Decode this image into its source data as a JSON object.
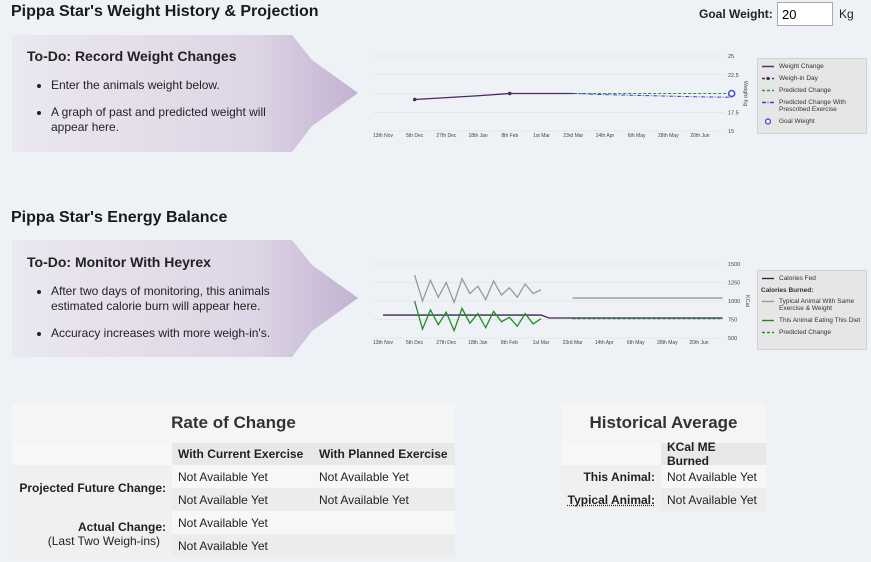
{
  "weight_section": {
    "title": "Pippa Star's Weight History & Projection",
    "goal_label": "Goal Weight:",
    "goal_value": 20,
    "goal_unit": "Kg",
    "todo": {
      "title": "To-Do: Record Weight Changes",
      "items": [
        "Enter the animals weight below.",
        "A graph of past and predicted weight will appear here."
      ]
    },
    "chart_data": {
      "type": "line",
      "y_label": "Weight Kg",
      "categories": [
        "13th Nov",
        "5th Dec",
        "27th Dec",
        "18th Jan",
        "8th Feb",
        "1st Mar",
        "23rd Mar",
        "14th Apr",
        "6th May",
        "28th May",
        "20th Jun",
        null
      ],
      "ylim": [
        15,
        25
      ],
      "yticks": [
        15,
        17.5,
        20,
        22.5,
        25
      ],
      "grid": true,
      "series": [
        {
          "name": "Weight Change",
          "color": "#4b2a5e",
          "style": "solid",
          "values": [
            null,
            19.2,
            19.45,
            19.7,
            20,
            20,
            20,
            null,
            null,
            null,
            null,
            null
          ]
        },
        {
          "name": "Weigh-in Day",
          "color": "#4b2a5e",
          "style": "marker-dashed",
          "values": [
            null,
            19.2,
            null,
            null,
            20,
            null,
            null,
            null,
            null,
            null,
            null,
            null
          ]
        },
        {
          "name": "Predicted Change",
          "color": "#2a9a2a",
          "style": "dashed",
          "values": [
            null,
            null,
            null,
            null,
            null,
            null,
            20,
            20,
            20,
            20,
            20,
            20
          ]
        },
        {
          "name": "Predicted Change With Prescribed Exercise",
          "color": "#3344cc",
          "style": "dashdot",
          "values": [
            null,
            null,
            null,
            null,
            null,
            null,
            20,
            19.85,
            19.75,
            19.65,
            19.55,
            19.5
          ]
        },
        {
          "name": "Goal Weight",
          "color": "#3f51d6",
          "style": "ring",
          "values": [
            null,
            null,
            null,
            null,
            null,
            null,
            null,
            null,
            null,
            null,
            null,
            20
          ]
        }
      ]
    }
  },
  "energy_section": {
    "title": "Pippa Star's Energy Balance",
    "todo": {
      "title": "To-Do: Monitor With Heyrex",
      "items": [
        "After two days of monitoring, this animals estimated calorie burn will appear here.",
        "Accuracy increases with more weigh-in's."
      ]
    },
    "chart_data": {
      "type": "line",
      "y_label": "KCal",
      "legend_heading": "Calories Burned:",
      "categories": [
        "13th Nov",
        null,
        null,
        null,
        "5th Dec",
        null,
        null,
        null,
        "27th Dec",
        null,
        null,
        null,
        "18th Jan",
        null,
        null,
        null,
        "8th Feb",
        null,
        null,
        null,
        "1st Mar",
        null,
        null,
        null,
        "23rd Mar",
        null,
        null,
        null,
        "14th Apr",
        null,
        null,
        null,
        "6th May",
        null,
        null,
        null,
        "28th May",
        null,
        null,
        null,
        "20th Jun",
        null,
        null,
        null
      ],
      "ylim": [
        500,
        1500
      ],
      "yticks": [
        500,
        750,
        1000,
        1250,
        1500
      ],
      "grid": true,
      "series": [
        {
          "name": "Calories Fed",
          "color": "#3d2450",
          "style": "solid",
          "values": [
            810,
            810,
            810,
            810,
            810,
            810,
            810,
            810,
            810,
            810,
            810,
            810,
            810,
            810,
            810,
            810,
            810,
            810,
            810,
            810,
            810,
            770,
            770,
            770,
            770,
            770,
            770,
            770,
            770,
            770,
            770,
            770,
            770,
            770,
            770,
            770,
            770,
            770,
            770,
            770,
            770,
            770,
            770,
            770
          ]
        },
        {
          "name": "Typical Animal With Same Exercise & Weight",
          "color": "#999999",
          "style": "solid",
          "values": [
            null,
            null,
            null,
            null,
            1350,
            1000,
            1280,
            1050,
            1250,
            980,
            1300,
            1100,
            1200,
            1020,
            1270,
            1080,
            1180,
            1050,
            1230,
            1100,
            1150,
            null,
            null,
            null,
            1040,
            1040,
            1040,
            1040,
            1040,
            1040,
            1040,
            1040,
            1040,
            1040,
            1040,
            1040,
            1040,
            1040,
            1040,
            1040,
            1040,
            1040,
            1040,
            1040
          ]
        },
        {
          "name": "This Animal Eating This Diet",
          "color": "#1f8f1f",
          "style": "solid",
          "values": [
            null,
            null,
            null,
            null,
            1000,
            620,
            880,
            680,
            850,
            600,
            900,
            700,
            830,
            640,
            860,
            720,
            780,
            660,
            830,
            690,
            760,
            null,
            null,
            null,
            null,
            null,
            null,
            null,
            null,
            null,
            null,
            null,
            null,
            null,
            null,
            null,
            null,
            null,
            null,
            null,
            null,
            null,
            null,
            null
          ]
        },
        {
          "name": "Predicted Change",
          "color": "#1f8f1f",
          "style": "dashed",
          "values": [
            null,
            null,
            null,
            null,
            null,
            null,
            null,
            null,
            null,
            null,
            null,
            null,
            null,
            null,
            null,
            null,
            null,
            null,
            null,
            null,
            null,
            null,
            null,
            null,
            760,
            760,
            760,
            760,
            760,
            760,
            760,
            760,
            760,
            760,
            760,
            760,
            760,
            760,
            760,
            760,
            760,
            760,
            760,
            760
          ]
        }
      ]
    }
  },
  "rate_table": {
    "title": "Rate of Change",
    "columns": [
      "With Current Exercise",
      "With Planned Exercise"
    ],
    "rows": [
      {
        "label": "Projected Future Change:",
        "cells": [
          [
            "Not Available Yet",
            "Not Available Yet"
          ],
          [
            "Not Available Yet",
            "Not Available Yet"
          ]
        ]
      },
      {
        "label": "Actual Change:",
        "sublabel": "(Last Two Weigh-ins)",
        "cells": [
          [
            "Not Available Yet"
          ],
          [
            "Not Available Yet"
          ]
        ]
      }
    ]
  },
  "history_table": {
    "title": "Historical Average",
    "column": "KCal ME Burned",
    "rows": [
      {
        "label": "This Animal:",
        "value": "Not Available Yet"
      },
      {
        "label": "Typical Animal:",
        "value": "Not Available Yet"
      }
    ]
  }
}
